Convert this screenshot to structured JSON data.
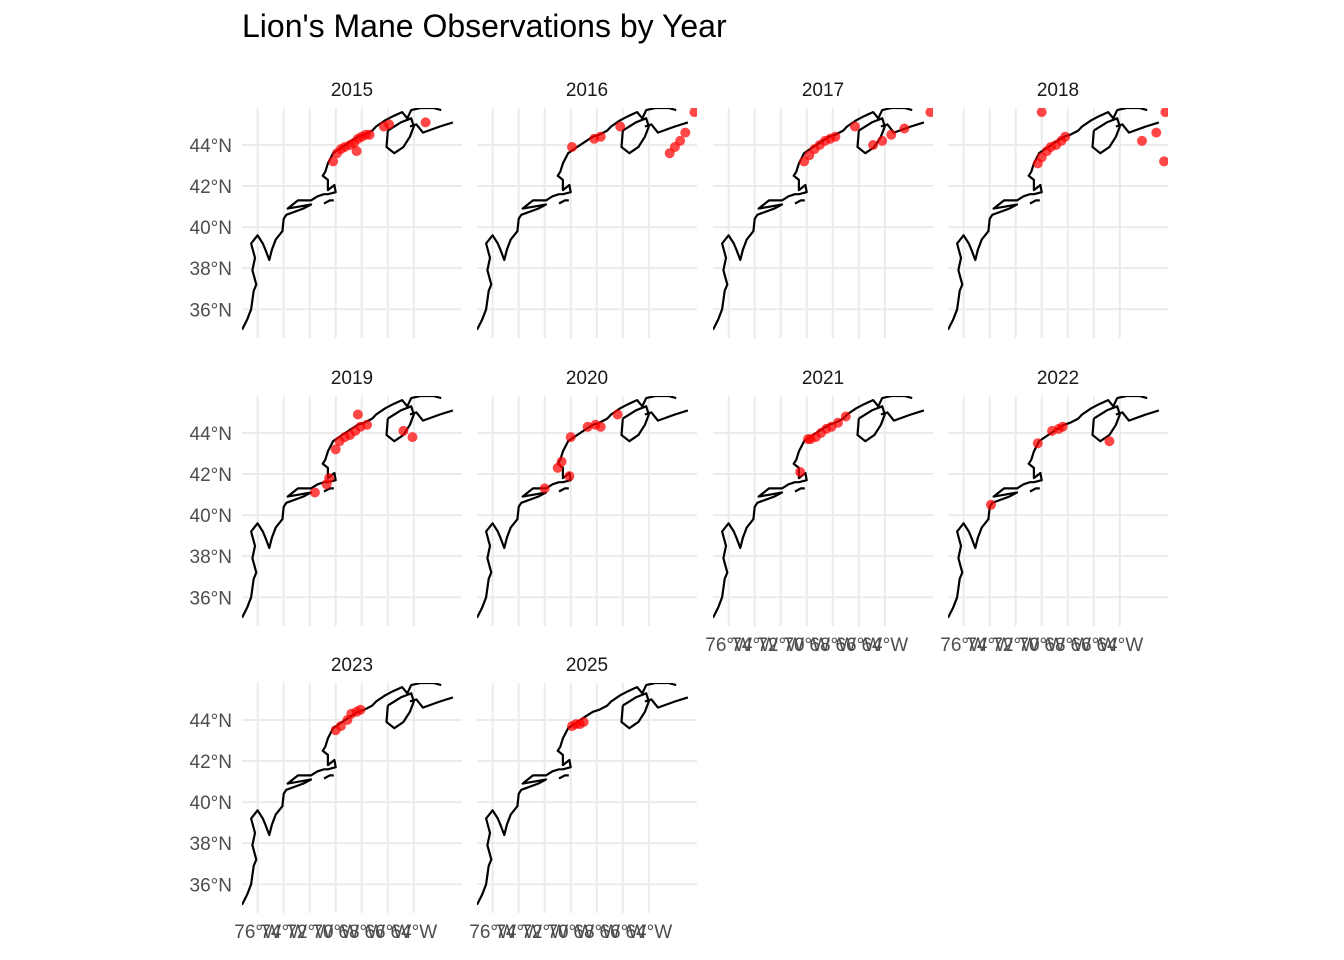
{
  "title": "Lion's Mane Observations by Year",
  "colors": {
    "point": "#ff0000",
    "coast": "#000000",
    "grid": "#ebebeb"
  },
  "chart_data": {
    "type": "scatter",
    "facet_var": "year",
    "panels": [
      "2015",
      "2016",
      "2017",
      "2018",
      "2019",
      "2020",
      "2021",
      "2022",
      "2023",
      "2025"
    ],
    "xlim": [
      -77.2,
      -60.3
    ],
    "ylim": [
      34.6,
      45.8
    ],
    "x_ticks": [
      -76,
      -74,
      -72,
      -70,
      -68,
      -66,
      -64
    ],
    "x_tick_labels": [
      "76°W",
      "74°W",
      "72°W",
      "70°W",
      "68°W",
      "66°W",
      "64°W"
    ],
    "y_ticks": [
      36,
      38,
      40,
      42,
      44
    ],
    "y_tick_labels": [
      "36°N",
      "38°N",
      "40°N",
      "42°N",
      "44°N"
    ],
    "grid": true,
    "coastline": [
      [
        [
          -77.2,
          35.0
        ],
        [
          -76.8,
          35.5
        ],
        [
          -76.5,
          36.0
        ],
        [
          -76.3,
          36.9
        ],
        [
          -76.1,
          37.2
        ],
        [
          -76.4,
          37.9
        ],
        [
          -76.2,
          38.5
        ],
        [
          -76.5,
          39.2
        ],
        [
          -76.0,
          39.6
        ],
        [
          -75.6,
          39.2
        ],
        [
          -75.4,
          38.9
        ],
        [
          -75.1,
          38.4
        ],
        [
          -74.9,
          38.9
        ],
        [
          -74.6,
          39.4
        ],
        [
          -74.1,
          39.8
        ],
        [
          -74.0,
          40.4
        ],
        [
          -73.8,
          40.6
        ],
        [
          -72.5,
          40.9
        ],
        [
          -71.9,
          41.1
        ],
        [
          -72.8,
          41.0
        ],
        [
          -73.7,
          40.9
        ],
        [
          -72.9,
          41.3
        ],
        [
          -71.9,
          41.3
        ],
        [
          -71.4,
          41.5
        ],
        [
          -70.9,
          41.6
        ],
        [
          -70.6,
          41.6
        ],
        [
          -70.0,
          41.7
        ],
        [
          -70.1,
          42.05
        ],
        [
          -70.6,
          41.8
        ],
        [
          -70.6,
          42.3
        ],
        [
          -71.0,
          42.5
        ],
        [
          -70.8,
          42.7
        ],
        [
          -70.6,
          43.1
        ],
        [
          -70.2,
          43.6
        ],
        [
          -69.5,
          43.9
        ],
        [
          -68.8,
          44.2
        ],
        [
          -68.3,
          44.4
        ],
        [
          -67.8,
          44.5
        ],
        [
          -67.2,
          44.7
        ],
        [
          -66.9,
          44.9
        ],
        [
          -66.2,
          45.2
        ],
        [
          -65.6,
          45.4
        ],
        [
          -64.9,
          45.6
        ],
        [
          -64.5,
          45.3
        ],
        [
          -64.2,
          45.7
        ],
        [
          -63.5,
          45.8
        ],
        [
          -62.5,
          45.8
        ],
        [
          -61.9,
          45.7
        ]
      ],
      [
        [
          -66.0,
          44.7
        ],
        [
          -65.0,
          45.1
        ],
        [
          -64.2,
          45.3
        ],
        [
          -64.0,
          44.9
        ],
        [
          -64.3,
          44.4
        ],
        [
          -64.8,
          43.9
        ],
        [
          -65.5,
          43.6
        ],
        [
          -66.1,
          43.9
        ],
        [
          -66.0,
          44.7
        ]
      ],
      [
        [
          -64.3,
          44.9
        ],
        [
          -63.8,
          45.0
        ],
        [
          -63.3,
          44.6
        ],
        [
          -62.0,
          44.9
        ],
        [
          -61.0,
          45.1
        ]
      ],
      [
        [
          -70.9,
          41.15
        ],
        [
          -70.45,
          41.3
        ],
        [
          -70.15,
          41.3
        ]
      ],
      [
        [
          -73.5,
          45.85
        ],
        [
          -72.5,
          46.0
        ]
      ]
    ],
    "series": [
      {
        "name": "2015",
        "points": [
          [
            -70.2,
            43.2
          ],
          [
            -69.9,
            43.6
          ],
          [
            -69.6,
            43.8
          ],
          [
            -69.3,
            43.9
          ],
          [
            -68.9,
            44.0
          ],
          [
            -68.6,
            44.1
          ],
          [
            -68.3,
            44.3
          ],
          [
            -68.0,
            44.4
          ],
          [
            -67.7,
            44.5
          ],
          [
            -67.4,
            44.5
          ],
          [
            -66.3,
            44.9
          ],
          [
            -65.9,
            45.0
          ],
          [
            -68.4,
            43.7
          ],
          [
            -63.1,
            45.1
          ]
        ]
      },
      {
        "name": "2016",
        "points": [
          [
            -69.9,
            43.9
          ],
          [
            -68.2,
            44.3
          ],
          [
            -67.7,
            44.4
          ],
          [
            -66.2,
            44.9
          ],
          [
            -60.5,
            45.6
          ],
          [
            -61.2,
            44.6
          ],
          [
            -61.6,
            44.2
          ],
          [
            -62.0,
            43.9
          ],
          [
            -62.4,
            43.6
          ]
        ]
      },
      {
        "name": "2017",
        "points": [
          [
            -70.2,
            43.2
          ],
          [
            -69.8,
            43.5
          ],
          [
            -69.4,
            43.8
          ],
          [
            -69.0,
            44.0
          ],
          [
            -68.6,
            44.2
          ],
          [
            -68.2,
            44.3
          ],
          [
            -67.8,
            44.4
          ],
          [
            -66.3,
            44.9
          ],
          [
            -64.9,
            44.0
          ],
          [
            -64.2,
            44.2
          ],
          [
            -63.5,
            44.5
          ],
          [
            -62.5,
            44.8
          ],
          [
            -60.5,
            45.6
          ]
        ]
      },
      {
        "name": "2018",
        "points": [
          [
            -70.3,
            43.1
          ],
          [
            -70.0,
            43.4
          ],
          [
            -69.6,
            43.7
          ],
          [
            -69.3,
            43.9
          ],
          [
            -68.9,
            44.0
          ],
          [
            -68.5,
            44.2
          ],
          [
            -68.2,
            44.4
          ],
          [
            -70.0,
            45.6
          ],
          [
            -60.5,
            45.6
          ],
          [
            -62.3,
            44.2
          ],
          [
            -61.2,
            44.6
          ],
          [
            -60.6,
            43.2
          ]
        ]
      },
      {
        "name": "2019",
        "points": [
          [
            -69.7,
            43.6
          ],
          [
            -69.3,
            43.8
          ],
          [
            -68.9,
            43.9
          ],
          [
            -68.5,
            44.1
          ],
          [
            -68.1,
            44.3
          ],
          [
            -67.6,
            44.4
          ],
          [
            -68.3,
            44.9
          ],
          [
            -70.5,
            41.8
          ],
          [
            -70.7,
            41.5
          ],
          [
            -71.6,
            41.1
          ],
          [
            -70.0,
            43.2
          ],
          [
            -64.8,
            44.1
          ],
          [
            -64.1,
            43.8
          ]
        ]
      },
      {
        "name": "2020",
        "points": [
          [
            -70.0,
            43.8
          ],
          [
            -68.7,
            44.3
          ],
          [
            -68.1,
            44.4
          ],
          [
            -67.7,
            44.3
          ],
          [
            -66.4,
            44.9
          ],
          [
            -70.7,
            42.6
          ],
          [
            -71.0,
            42.3
          ],
          [
            -72.0,
            41.3
          ],
          [
            -70.1,
            41.9
          ]
        ]
      },
      {
        "name": "2021",
        "points": [
          [
            -69.7,
            43.7
          ],
          [
            -69.3,
            43.8
          ],
          [
            -68.9,
            44.0
          ],
          [
            -68.5,
            44.2
          ],
          [
            -68.1,
            44.3
          ],
          [
            -67.6,
            44.5
          ],
          [
            -67.0,
            44.8
          ],
          [
            -69.9,
            43.7
          ],
          [
            -70.5,
            42.1
          ]
        ]
      },
      {
        "name": "2022",
        "points": [
          [
            -70.3,
            43.5
          ],
          [
            -69.2,
            44.1
          ],
          [
            -68.7,
            44.2
          ],
          [
            -68.4,
            44.3
          ],
          [
            -64.8,
            43.6
          ],
          [
            -73.9,
            40.5
          ]
        ]
      },
      {
        "name": "2023",
        "points": [
          [
            -70.0,
            43.5
          ],
          [
            -69.6,
            43.7
          ],
          [
            -69.1,
            44.0
          ],
          [
            -68.8,
            44.3
          ],
          [
            -68.4,
            44.4
          ],
          [
            -68.1,
            44.5
          ]
        ]
      },
      {
        "name": "2025",
        "points": [
          [
            -69.9,
            43.7
          ],
          [
            -69.6,
            43.8
          ],
          [
            -69.3,
            43.8
          ],
          [
            -69.0,
            43.9
          ]
        ]
      }
    ]
  }
}
